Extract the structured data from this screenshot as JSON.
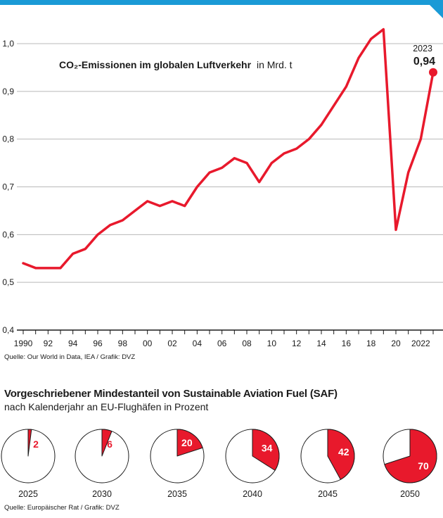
{
  "chart_data": [
    {
      "type": "line",
      "title_main": "CO₂-Emissionen im globalen Luftverkehr",
      "title_unit": "in Mrd. t",
      "ylim": [
        0.4,
        1.05
      ],
      "yticks": [
        "1,0",
        "0,9",
        "0,8",
        "0,7",
        "0,6",
        "0,5",
        "0,4"
      ],
      "ytick_values": [
        1.0,
        0.9,
        0.8,
        0.7,
        0.6,
        0.5,
        0.4
      ],
      "xticks": [
        "1990",
        "92",
        "94",
        "96",
        "98",
        "00",
        "02",
        "04",
        "06",
        "08",
        "10",
        "12",
        "14",
        "16",
        "18",
        "20",
        "2022"
      ],
      "xtick_years": [
        1990,
        1992,
        1994,
        1996,
        1998,
        2000,
        2002,
        2004,
        2006,
        2008,
        2010,
        2012,
        2014,
        2016,
        2018,
        2020,
        2022
      ],
      "x": [
        1990,
        1991,
        1992,
        1993,
        1994,
        1995,
        1996,
        1997,
        1998,
        1999,
        2000,
        2001,
        2002,
        2003,
        2004,
        2005,
        2006,
        2007,
        2008,
        2009,
        2010,
        2011,
        2012,
        2013,
        2014,
        2015,
        2016,
        2017,
        2018,
        2019,
        2020,
        2021,
        2022,
        2023
      ],
      "series": [
        {
          "values": [
            0.54,
            0.53,
            0.53,
            0.53,
            0.56,
            0.57,
            0.6,
            0.62,
            0.63,
            0.65,
            0.67,
            0.66,
            0.67,
            0.66,
            0.7,
            0.73,
            0.74,
            0.76,
            0.75,
            0.71,
            0.75,
            0.77,
            0.78,
            0.8,
            0.83,
            0.87,
            0.91,
            0.97,
            1.01,
            1.03,
            0.61,
            0.73,
            0.8,
            0.94
          ],
          "color": "#e8192c"
        }
      ],
      "annotation": {
        "year_label": "2023",
        "value_label": "0,94",
        "x": 2023,
        "y": 0.94
      },
      "source": "Quelle: Our World in Data, IEA / Grafik: DVZ",
      "grid": true
    },
    {
      "type": "pie",
      "title": "Vorgeschriebener Mindestanteil von Sustainable Aviation Fuel (SAF)",
      "subtitle": "nach Kalenderjahr an EU-Flughäfen in Prozent",
      "items": [
        {
          "year": "2025",
          "value": 2
        },
        {
          "year": "2030",
          "value": 6
        },
        {
          "year": "2035",
          "value": 20
        },
        {
          "year": "2040",
          "value": 34
        },
        {
          "year": "2045",
          "value": 42
        },
        {
          "year": "2050",
          "value": 70
        }
      ],
      "color": "#e8192c",
      "source": "Quelle: Europäischer Rat / Grafik: DVZ"
    }
  ]
}
